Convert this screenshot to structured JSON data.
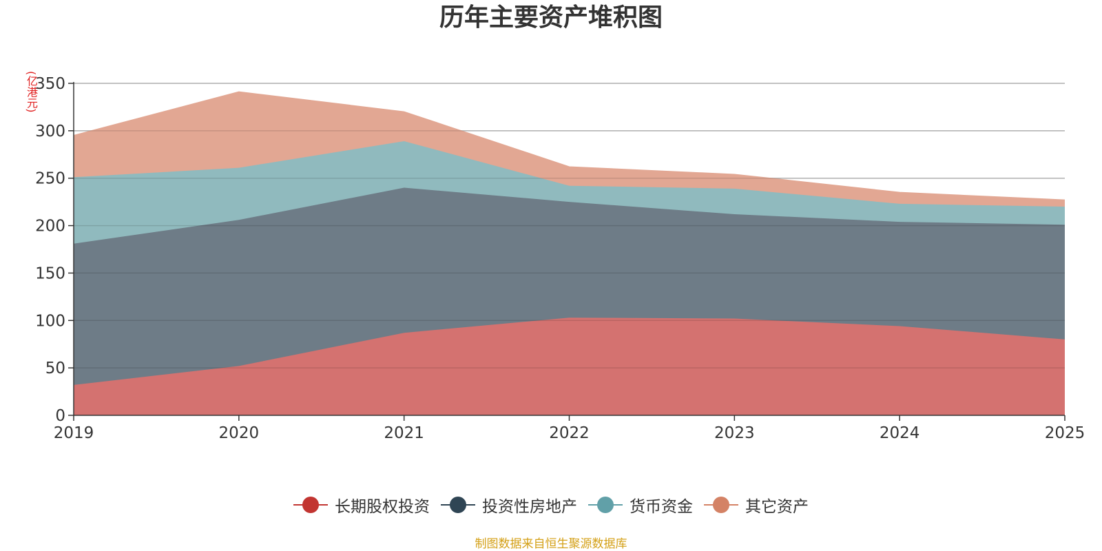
{
  "chart_data": {
    "type": "area",
    "stacked": true,
    "title": "历年主要资产堆积图",
    "ylabel": "(亿港元)",
    "xlabel": "",
    "categories": [
      "2019",
      "2020",
      "2021",
      "2022",
      "2023",
      "2024",
      "2025"
    ],
    "ylim": [
      0,
      350
    ],
    "yticks": [
      0,
      50,
      100,
      150,
      200,
      250,
      300,
      350
    ],
    "grid": true,
    "legend_position": "bottom",
    "series": [
      {
        "name": "长期股权投资",
        "color": "#c23531",
        "fill": "#d47270",
        "values": [
          32,
          52,
          87,
          103,
          102,
          94,
          80
        ]
      },
      {
        "name": "投资性房地产",
        "color": "#2f4554",
        "fill": "#6e7c87",
        "values": [
          149,
          154,
          153,
          122,
          110,
          110,
          121
        ]
      },
      {
        "name": "货币资金",
        "color": "#61a0a8",
        "fill": "#90babe",
        "values": [
          70,
          55,
          49,
          17,
          27,
          19,
          19
        ]
      },
      {
        "name": "其它资产",
        "color": "#d48265",
        "fill": "#e2a793",
        "values": [
          44,
          80,
          31,
          20,
          15,
          12,
          7
        ]
      }
    ]
  },
  "footer": {
    "source": "制图数据来自恒生聚源数据库"
  }
}
